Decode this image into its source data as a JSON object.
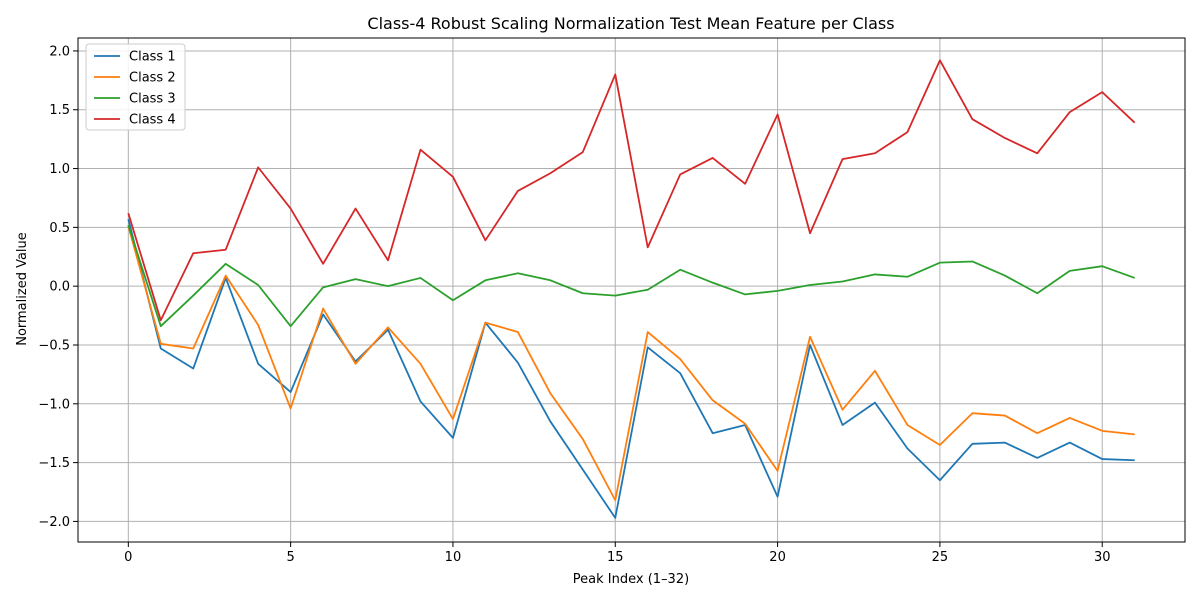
{
  "chart_data": {
    "type": "line",
    "title": "Class-4 Robust Scaling Normalization Test Mean Feature per Class",
    "xlabel": "Peak Index (1–32)",
    "ylabel": "Normalized Value",
    "xlim": [
      -1.55,
      32.55
    ],
    "ylim": [
      -2.175,
      2.11
    ],
    "x_ticks": [
      0,
      5,
      10,
      15,
      20,
      25,
      30
    ],
    "y_ticks": [
      -2.0,
      -1.5,
      -1.0,
      -0.5,
      0.0,
      0.5,
      1.0,
      1.5,
      2.0
    ],
    "x_tick_labels": [
      "0",
      "5",
      "10",
      "15",
      "20",
      "25",
      "30"
    ],
    "y_tick_labels": [
      "−2.0",
      "−1.5",
      "−1.0",
      "−0.5",
      "0.0",
      "0.5",
      "1.0",
      "1.5",
      "2.0"
    ],
    "grid": true,
    "legend_position": "top-left",
    "x": [
      0,
      1,
      2,
      3,
      4,
      5,
      6,
      7,
      8,
      9,
      10,
      11,
      12,
      13,
      14,
      15,
      16,
      17,
      18,
      19,
      20,
      21,
      22,
      23,
      24,
      25,
      26,
      27,
      28,
      29,
      30,
      31
    ],
    "series": [
      {
        "name": "Class 1",
        "color": "#1f77b4",
        "values": [
          0.57,
          -0.53,
          -0.7,
          0.07,
          -0.66,
          -0.9,
          -0.24,
          -0.64,
          -0.37,
          -0.98,
          -1.29,
          -0.31,
          -0.65,
          -1.15,
          -1.56,
          -1.97,
          -0.52,
          -0.74,
          -1.25,
          -1.18,
          -1.79,
          -0.5,
          -1.18,
          -0.99,
          -1.38,
          -1.65,
          -1.34,
          -1.33,
          -1.46,
          -1.33,
          -1.47,
          -1.48
        ]
      },
      {
        "name": "Class 2",
        "color": "#ff7f0e",
        "values": [
          0.51,
          -0.49,
          -0.53,
          0.09,
          -0.33,
          -1.04,
          -0.19,
          -0.66,
          -0.35,
          -0.66,
          -1.13,
          -0.31,
          -0.39,
          -0.91,
          -1.3,
          -1.82,
          -0.39,
          -0.62,
          -0.97,
          -1.17,
          -1.57,
          -0.43,
          -1.05,
          -0.72,
          -1.18,
          -1.35,
          -1.08,
          -1.1,
          -1.25,
          -1.12,
          -1.23,
          -1.26
        ]
      },
      {
        "name": "Class 3",
        "color": "#2ca02c",
        "values": [
          0.52,
          -0.34,
          -0.08,
          0.19,
          0.01,
          -0.34,
          -0.01,
          0.06,
          0.0,
          0.07,
          -0.12,
          0.05,
          0.11,
          0.05,
          -0.06,
          -0.08,
          -0.03,
          0.14,
          0.03,
          -0.07,
          -0.04,
          0.01,
          0.04,
          0.1,
          0.08,
          0.2,
          0.21,
          0.09,
          -0.06,
          0.13,
          0.17,
          0.07
        ]
      },
      {
        "name": "Class 4",
        "color": "#d62728",
        "values": [
          0.62,
          -0.29,
          0.28,
          0.31,
          1.01,
          0.66,
          0.19,
          0.66,
          0.22,
          1.16,
          0.93,
          0.39,
          0.81,
          0.96,
          1.14,
          1.8,
          0.33,
          0.95,
          1.09,
          0.87,
          1.46,
          0.45,
          1.08,
          1.13,
          1.31,
          1.92,
          1.42,
          1.26,
          1.13,
          1.48,
          1.65,
          1.39
        ]
      }
    ]
  }
}
